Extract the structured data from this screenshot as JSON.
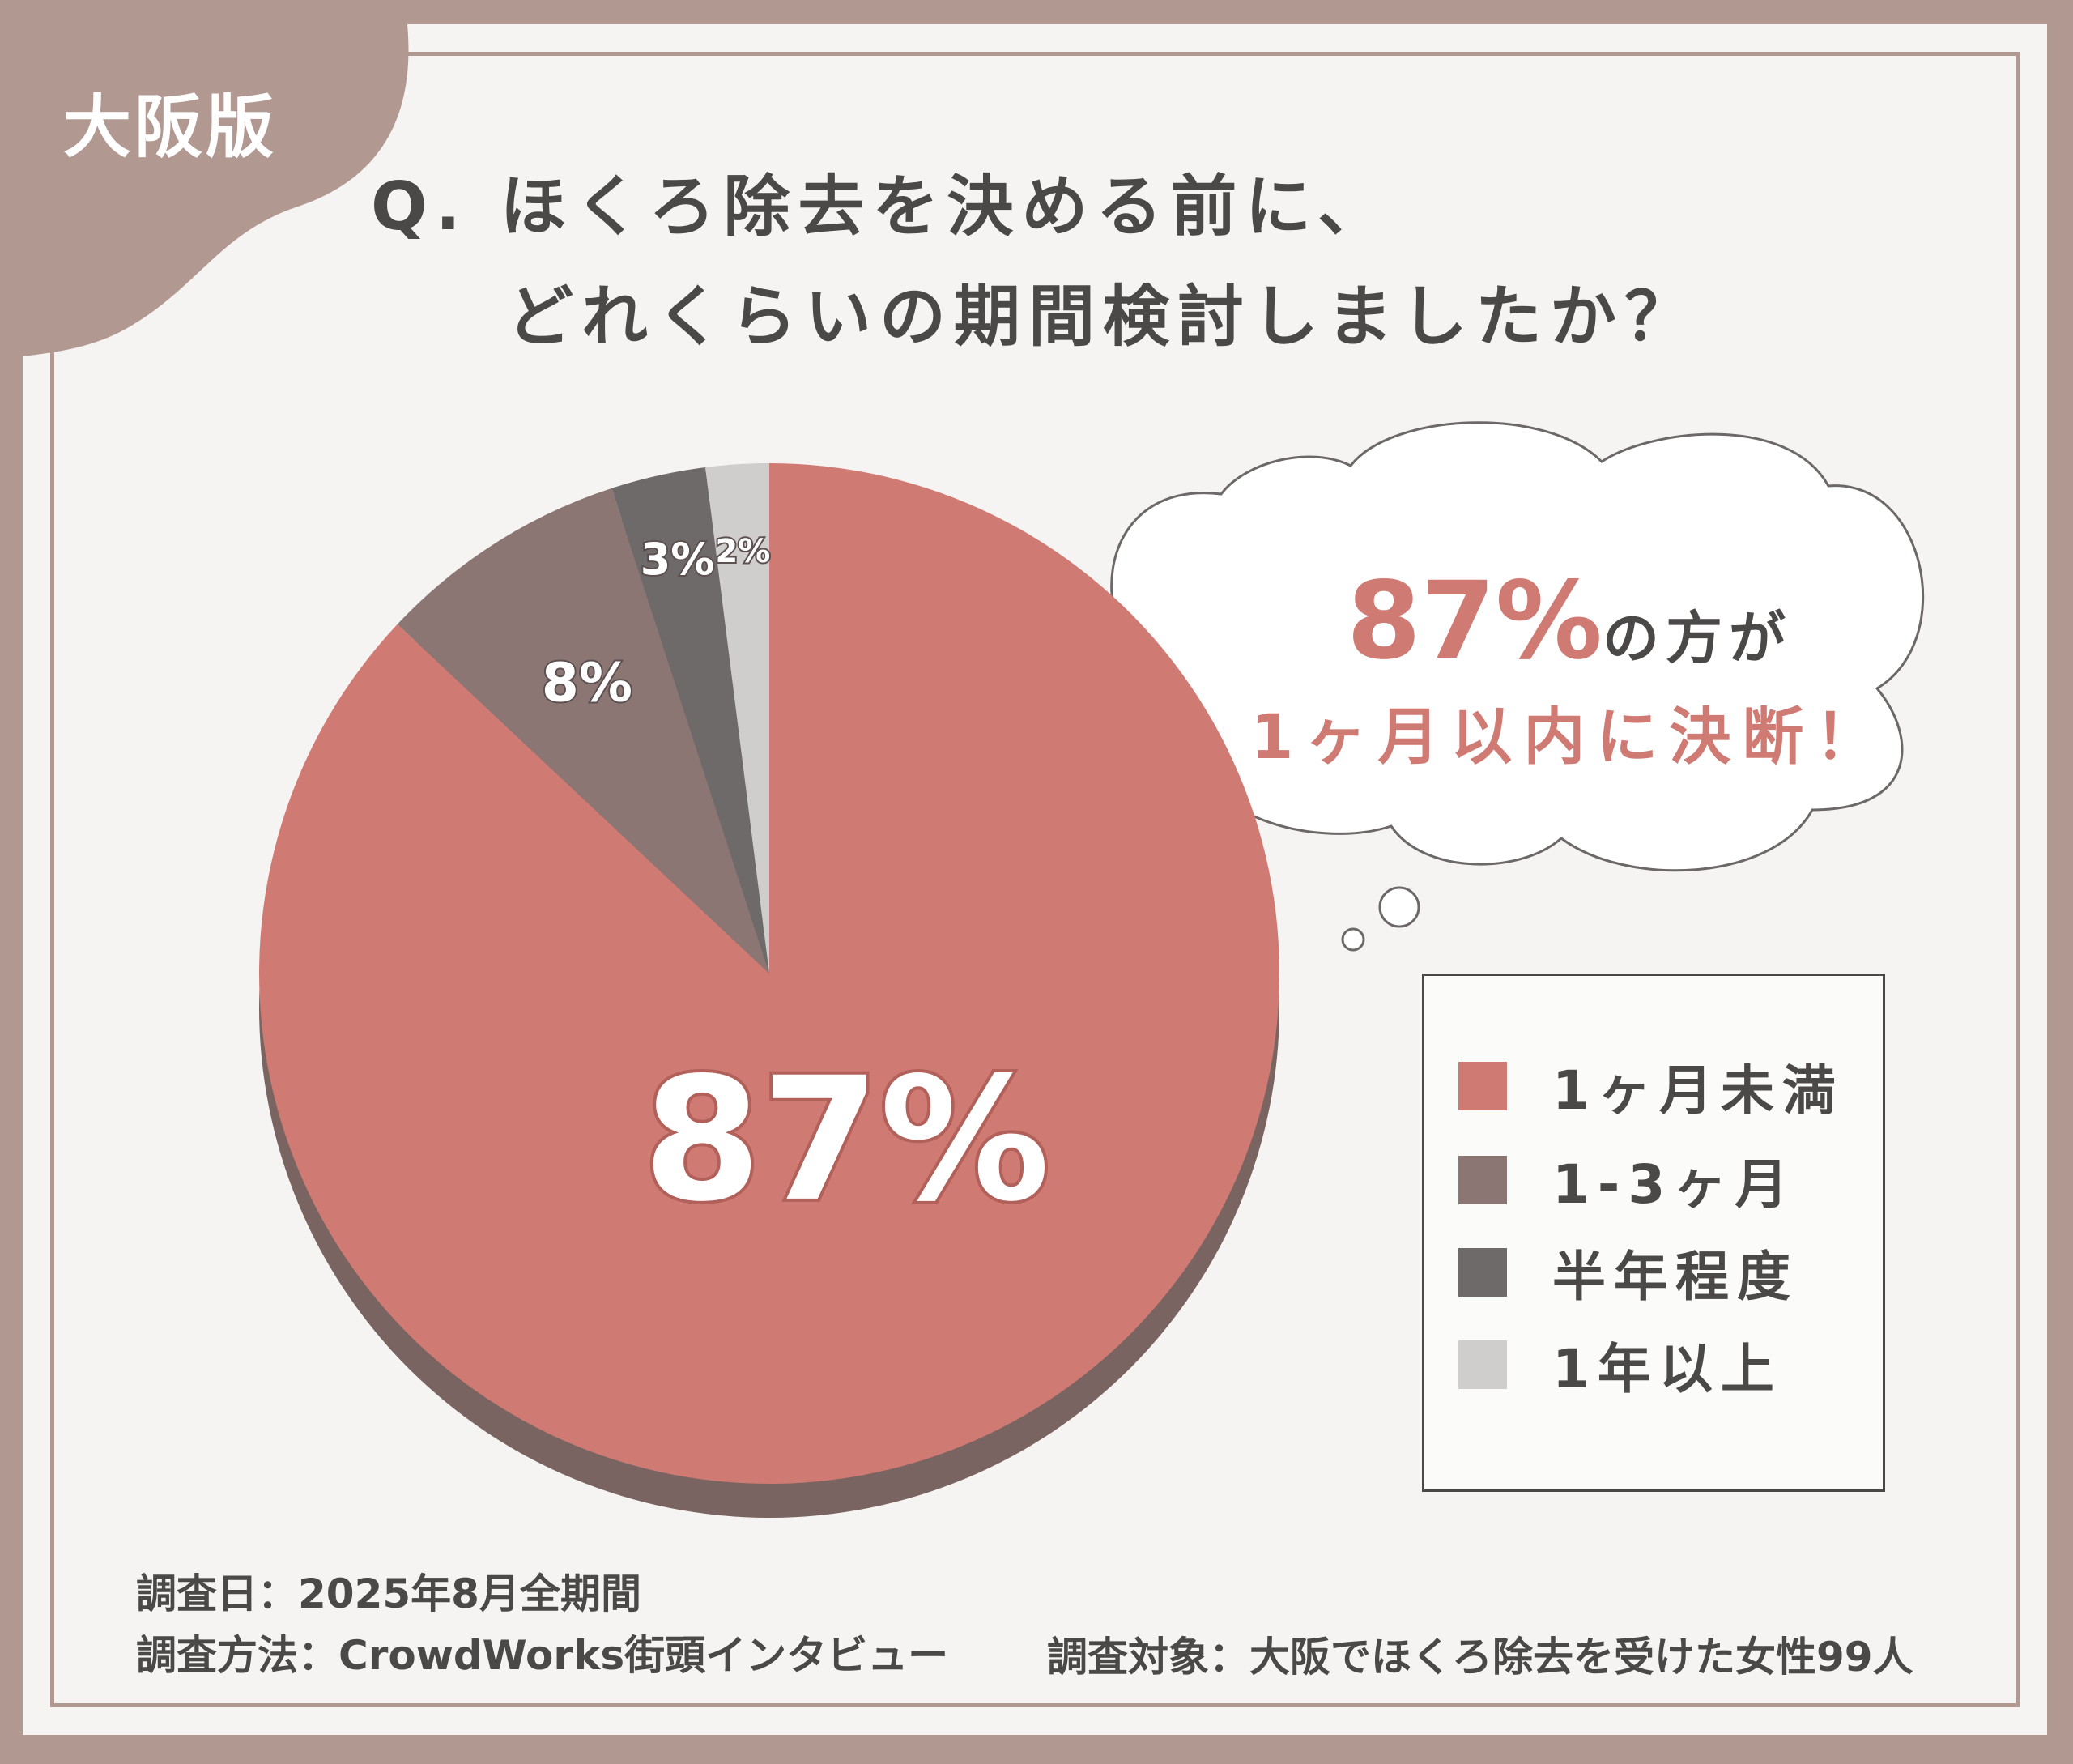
{
  "badge": {
    "label": "大阪版"
  },
  "question": {
    "line1": "Q. ほくろ除去を決める前に、",
    "line2": "どれくらいの期間検討しましたか？"
  },
  "colors": {
    "frame": "#b19891",
    "slice_1": "#d07a74",
    "slice_2": "#8b7673",
    "slice_3": "#6e6a6a",
    "slice_4": "#cfcecd",
    "text": "#4b4848"
  },
  "bubble": {
    "pct": "87%",
    "pct_suffix": "の方が",
    "line2": "1ヶ月以内に決断！"
  },
  "chart_data": {
    "type": "pie",
    "categories": [
      "1ヶ月未満",
      "1-3ヶ月",
      "半年程度",
      "1年以上"
    ],
    "values": [
      87,
      8,
      3,
      2
    ],
    "labels": [
      "87%",
      "8%",
      "3%",
      "2%"
    ],
    "legend": "right"
  },
  "footer": {
    "date": "調査日：2025年8月全期間",
    "method": "調査方法：CrowdWorks街頭インタビュー",
    "target": "調査対象：大阪でほくろ除去を受けた女性99人"
  }
}
